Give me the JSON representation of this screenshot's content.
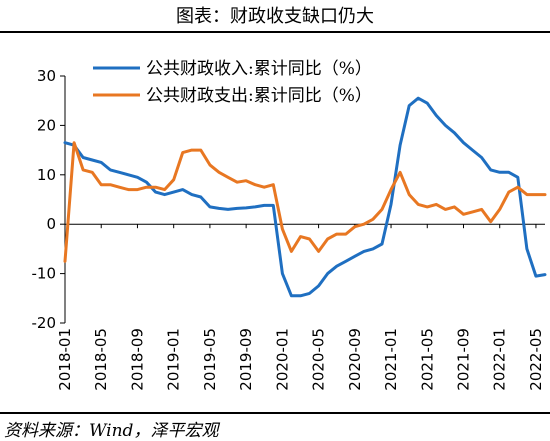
{
  "title": "图表：财政收支缺口仍大",
  "source": "资料来源：Wind，泽平宏观",
  "chart_data": {
    "type": "line",
    "ylim": [
      -20,
      30
    ],
    "yticks": [
      -20,
      -10,
      0,
      10,
      20,
      30
    ],
    "xtick_labels": [
      "2018-01",
      "2018-05",
      "2018-09",
      "2019-01",
      "2019-05",
      "2019-09",
      "2020-01",
      "2020-05",
      "2020-09",
      "2021-01",
      "2021-05",
      "2021-09",
      "2022-01",
      "2022-05"
    ],
    "legend_position": "top-left",
    "grid": false,
    "series": [
      {
        "name": "公共财政收入:累计同比（%）",
        "color": "#1f6fc1",
        "values": [
          16.5,
          16.0,
          13.5,
          13.0,
          12.5,
          11.0,
          10.5,
          10.0,
          9.5,
          8.5,
          6.5,
          6.0,
          6.5,
          7.0,
          6.0,
          5.5,
          3.5,
          3.2,
          3.0,
          3.2,
          3.3,
          3.5,
          3.8,
          3.8,
          -10.0,
          -14.5,
          -14.5,
          -14.0,
          -12.5,
          -10.0,
          -8.5,
          -7.5,
          -6.5,
          -5.5,
          -5.0,
          -4.0,
          4.0,
          16.0,
          24.0,
          25.5,
          24.5,
          22.0,
          20.0,
          18.5,
          16.5,
          15.0,
          13.5,
          11.0,
          10.5,
          10.5,
          9.5,
          -5.0,
          -10.5,
          -10.2
        ]
      },
      {
        "name": "公共财政支出:累计同比（%）",
        "color": "#e87722",
        "values": [
          -7.5,
          16.5,
          11.0,
          10.5,
          8.0,
          8.0,
          7.5,
          7.0,
          7.0,
          7.5,
          7.5,
          7.0,
          9.0,
          14.5,
          15.0,
          15.0,
          12.0,
          10.5,
          9.5,
          8.5,
          8.8,
          8.0,
          7.5,
          8.0,
          -1.0,
          -5.5,
          -2.5,
          -3.0,
          -5.5,
          -3.0,
          -2.0,
          -2.0,
          -0.5,
          0.0,
          1.0,
          3.0,
          7.0,
          10.5,
          6.0,
          4.0,
          3.5,
          4.0,
          3.0,
          3.5,
          2.0,
          2.5,
          3.0,
          0.5,
          3.0,
          6.5,
          7.5,
          6.0,
          6.0,
          6.0
        ]
      }
    ]
  }
}
